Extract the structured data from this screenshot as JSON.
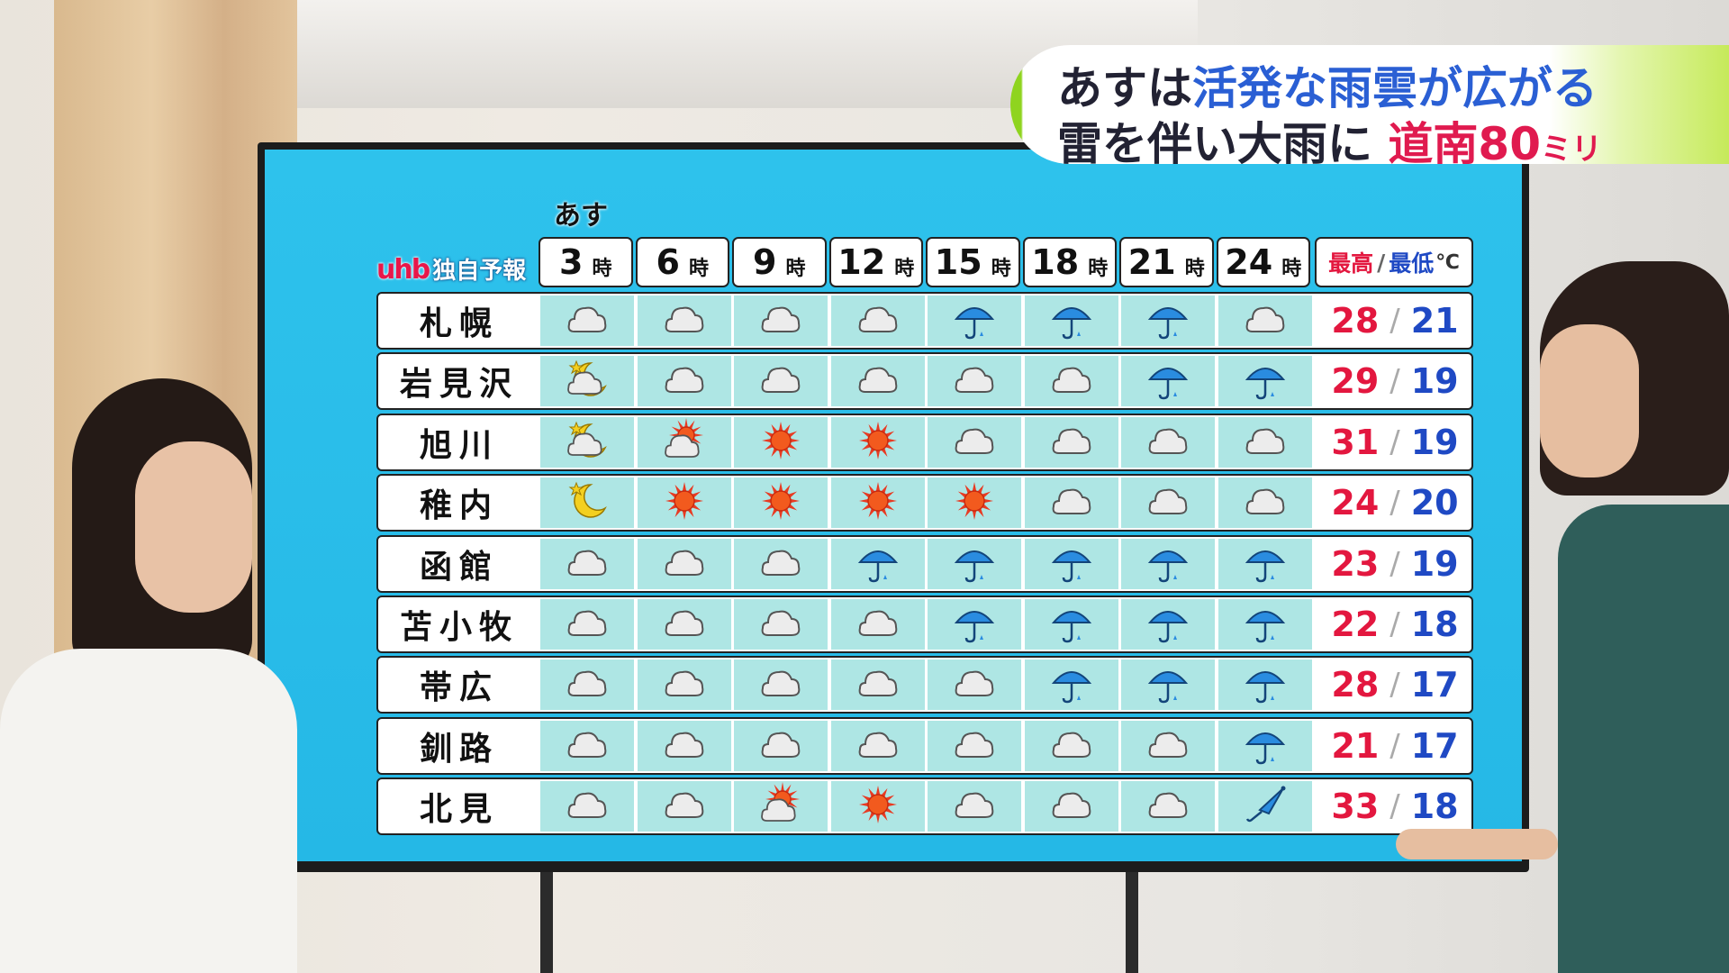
{
  "caption": {
    "line1_prefix": "あすは",
    "line1_highlight": "活発な雨雲が広がる",
    "line2_prefix": "雷を伴い大雨に",
    "line2_highlight": "道南80",
    "line2_unit": "ミリ",
    "colors": {
      "highlight_blue": "#2a5fd4",
      "highlight_red": "#e01a4f",
      "accent_green": "#8fd41f"
    }
  },
  "board": {
    "logo": "uhb",
    "title": "独自予報",
    "day_label": "あす",
    "times": [
      "3",
      "6",
      "9",
      "12",
      "15",
      "18",
      "21",
      "24"
    ],
    "time_suffix": "時",
    "temp_header": {
      "high": "最高",
      "sep": "/",
      "low": "最低",
      "unit": "℃"
    },
    "rows": [
      {
        "city": "札幌",
        "icons": [
          "cloud",
          "cloud",
          "cloud",
          "cloud",
          "umbrella",
          "umbrella",
          "umbrella",
          "cloud"
        ],
        "high": "28",
        "low": "21"
      },
      {
        "city": "岩見沢",
        "icons": [
          "moon-cloud",
          "cloud",
          "cloud",
          "cloud",
          "cloud",
          "cloud",
          "umbrella",
          "umbrella"
        ],
        "high": "29",
        "low": "19"
      },
      {
        "city": "旭川",
        "icons": [
          "moon-cloud",
          "sun-cloud",
          "sun",
          "sun",
          "cloud",
          "cloud",
          "cloud",
          "cloud"
        ],
        "high": "31",
        "low": "19"
      },
      {
        "city": "稚内",
        "icons": [
          "moon",
          "sun",
          "sun",
          "sun",
          "sun",
          "cloud",
          "cloud",
          "cloud"
        ],
        "high": "24",
        "low": "20"
      },
      {
        "city": "函館",
        "icons": [
          "cloud",
          "cloud",
          "cloud",
          "umbrella",
          "umbrella",
          "umbrella",
          "umbrella",
          "umbrella"
        ],
        "high": "23",
        "low": "19"
      },
      {
        "city": "苫小牧",
        "icons": [
          "cloud",
          "cloud",
          "cloud",
          "cloud",
          "umbrella",
          "umbrella",
          "umbrella",
          "umbrella"
        ],
        "high": "22",
        "low": "18"
      },
      {
        "city": "帯広",
        "icons": [
          "cloud",
          "cloud",
          "cloud",
          "cloud",
          "cloud",
          "umbrella",
          "umbrella",
          "umbrella"
        ],
        "high": "28",
        "low": "17"
      },
      {
        "city": "釧路",
        "icons": [
          "cloud",
          "cloud",
          "cloud",
          "cloud",
          "cloud",
          "cloud",
          "cloud",
          "umbrella"
        ],
        "high": "21",
        "low": "17"
      },
      {
        "city": "北見",
        "icons": [
          "cloud",
          "cloud",
          "sun-cloud",
          "sun",
          "cloud",
          "cloud",
          "cloud",
          "closed-umbrella"
        ],
        "high": "33",
        "low": "18"
      }
    ],
    "colors": {
      "background": "#2ec2ec",
      "cell": "#aee6e4",
      "high": "#e3173f",
      "low": "#1f49c4"
    }
  }
}
